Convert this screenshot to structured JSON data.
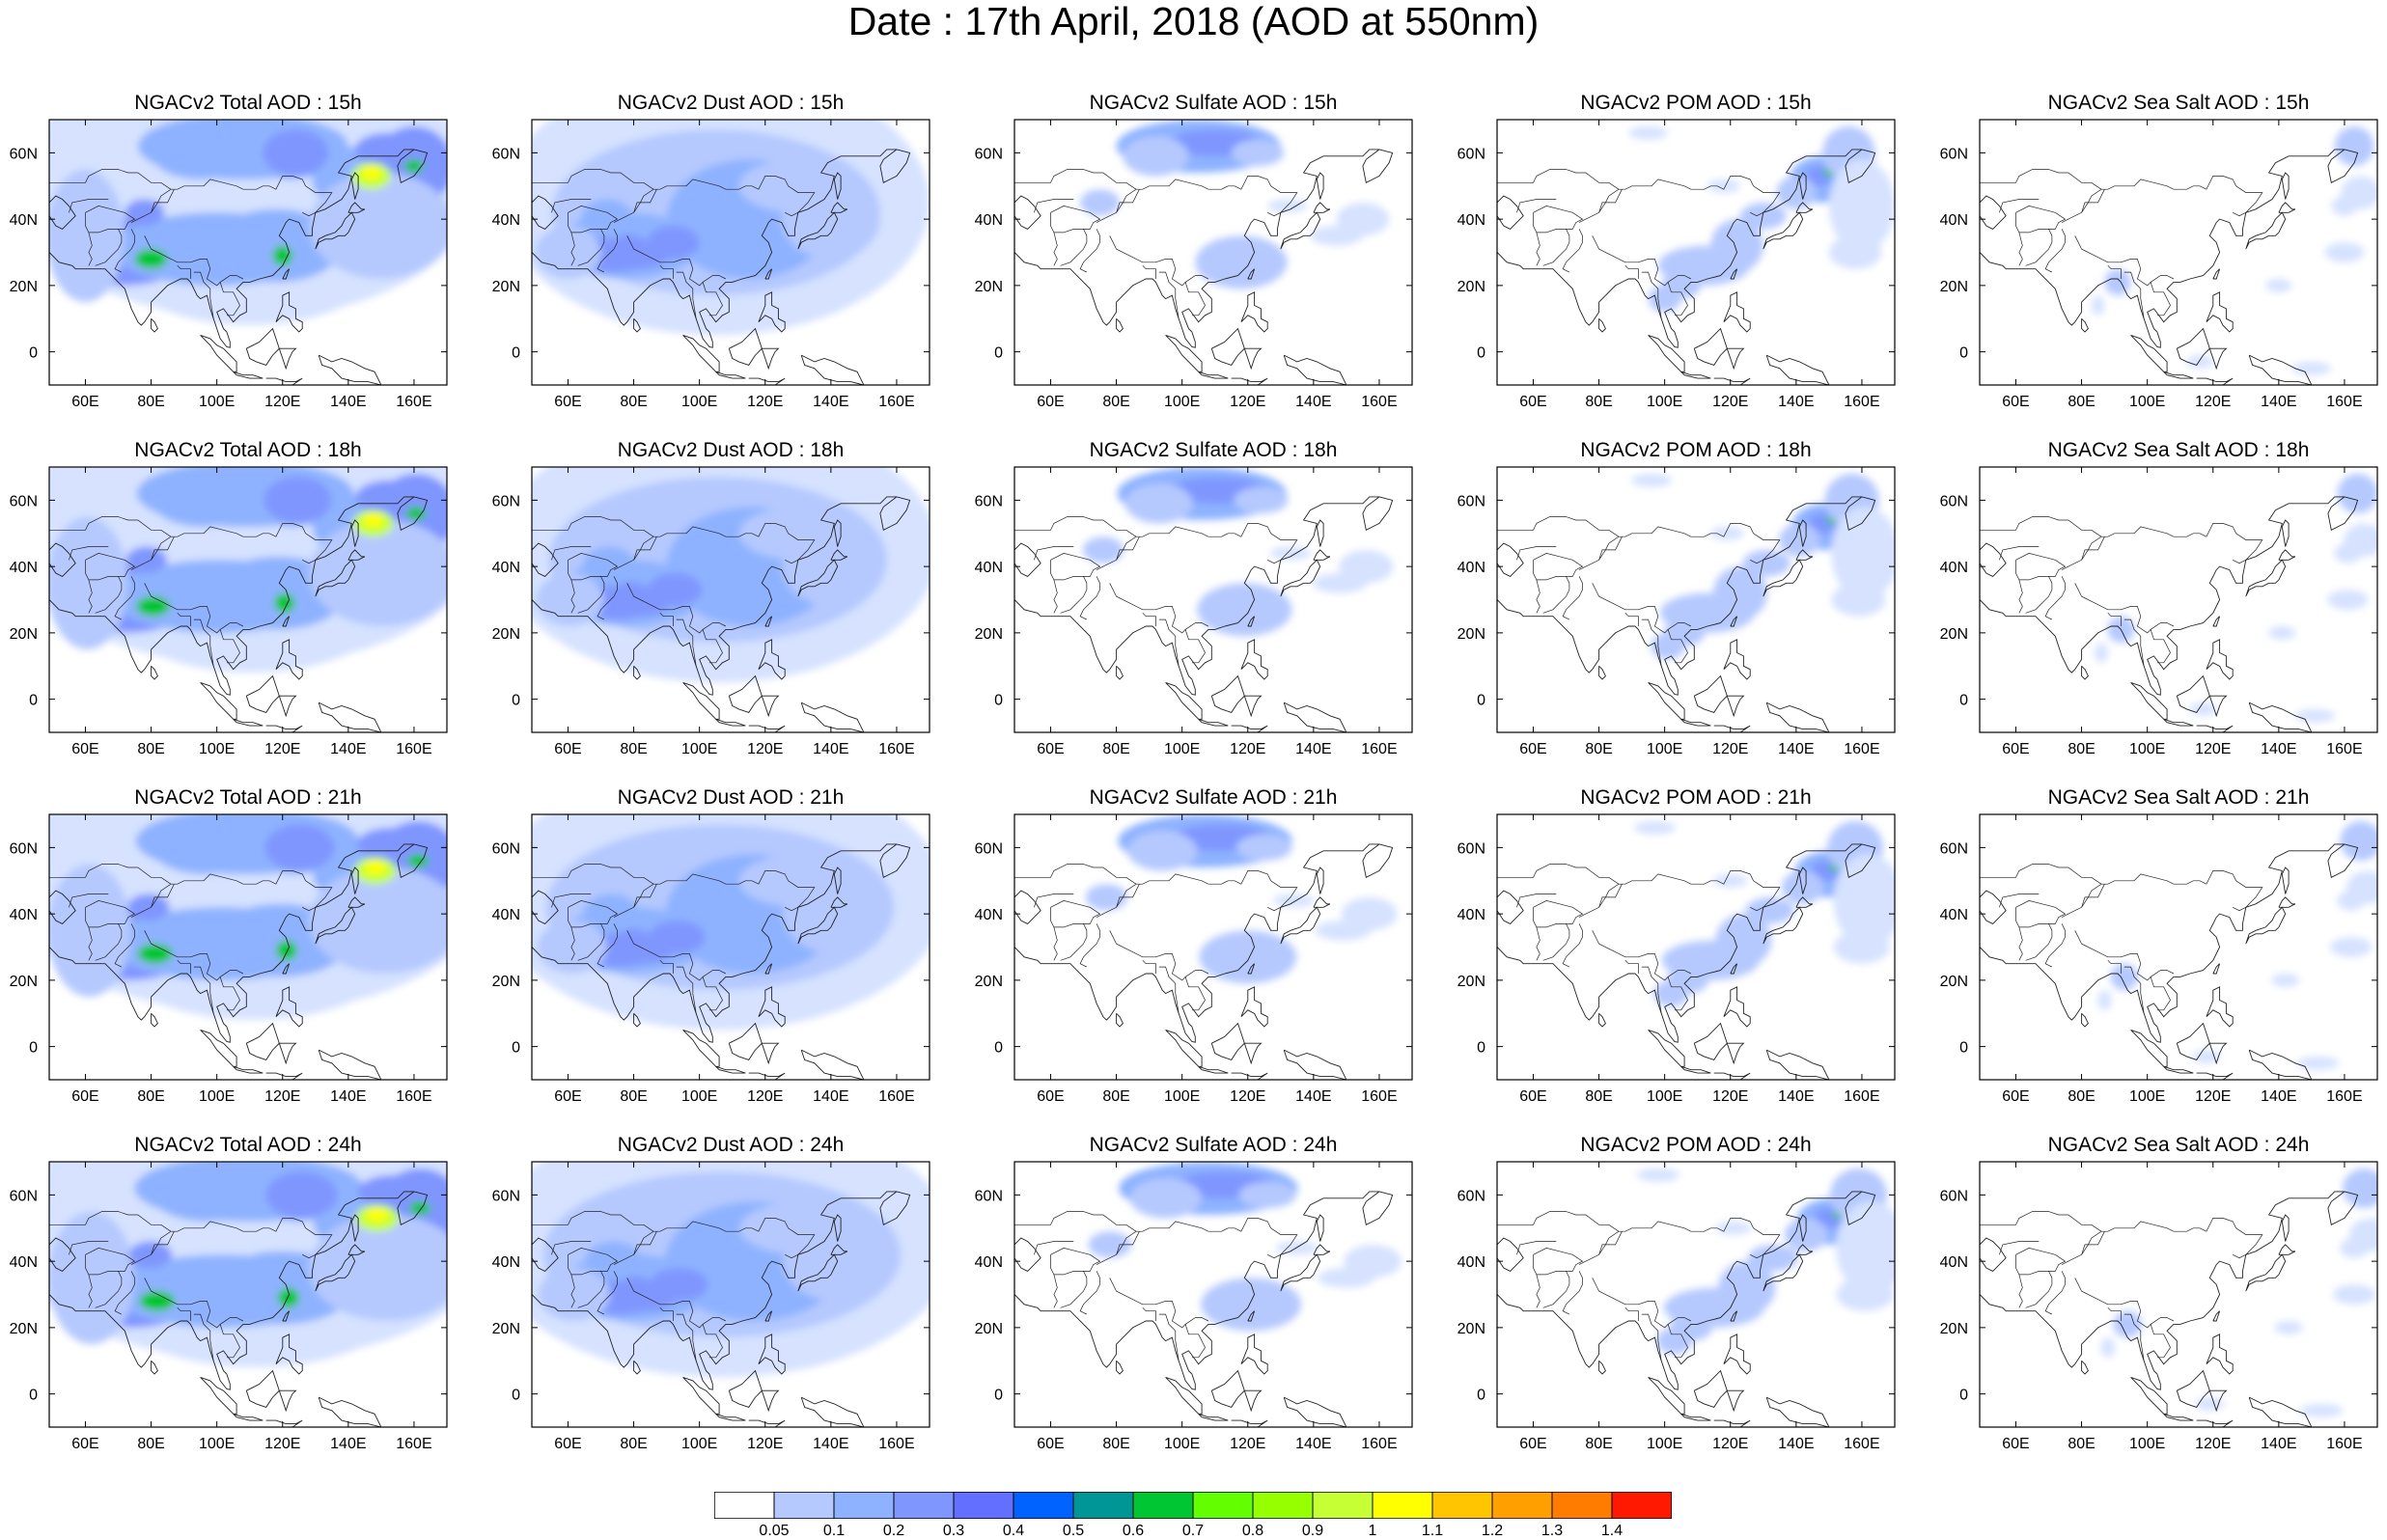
{
  "title": "Date : 17th April, 2018 (AOD at 550nm)",
  "panels": [
    [
      "NGACv2 Total AOD : 15h",
      "NGACv2 Dust AOD : 15h",
      "NGACv2 Sulfate AOD : 15h",
      "NGACv2 POM AOD : 15h",
      "NGACv2 Sea Salt AOD : 15h"
    ],
    [
      "NGACv2 Total AOD : 18h",
      "NGACv2 Dust AOD : 18h",
      "NGACv2 Sulfate AOD : 18h",
      "NGACv2 POM AOD : 18h",
      "NGACv2 Sea Salt AOD : 18h"
    ],
    [
      "NGACv2 Total AOD : 21h",
      "NGACv2 Dust AOD : 21h",
      "NGACv2 Sulfate AOD : 21h",
      "NGACv2 POM AOD : 21h",
      "NGACv2 Sea Salt AOD : 21h"
    ],
    [
      "NGACv2 Total AOD : 24h",
      "NGACv2 Dust AOD : 24h",
      "NGACv2 Sulfate AOD : 24h",
      "NGACv2 POM AOD : 24h",
      "NGACv2 Sea Salt  AOD : 24h"
    ]
  ],
  "axes": {
    "lon_ticks": [
      "60E",
      "80E",
      "100E",
      "120E",
      "140E",
      "160E"
    ],
    "lat_ticks": [
      "60N",
      "40N",
      "20N",
      "0"
    ],
    "lon_values": [
      60,
      80,
      100,
      120,
      140,
      160
    ],
    "lat_values": [
      60,
      40,
      20,
      0
    ],
    "lon_range": [
      49,
      170
    ],
    "lat_range": [
      -10,
      70
    ]
  },
  "colorbar": {
    "labels": [
      "0.05",
      "0.1",
      "0.2",
      "0.3",
      "0.4",
      "0.5",
      "0.6",
      "0.7",
      "0.8",
      "0.9",
      "1",
      "1.1",
      "1.2",
      "1.3",
      "1.4"
    ],
    "colors": [
      "#ffffff",
      "#d6e2ff",
      "#b5c9ff",
      "#8eb2ff",
      "#7f96ff",
      "#6370ff",
      "#0063ff",
      "#009696",
      "#00c633",
      "#63ff00",
      "#96ff00",
      "#c6ff33",
      "#ffff00",
      "#ffc600",
      "#ffa000",
      "#ff7c00",
      "#ff1900"
    ]
  }
}
